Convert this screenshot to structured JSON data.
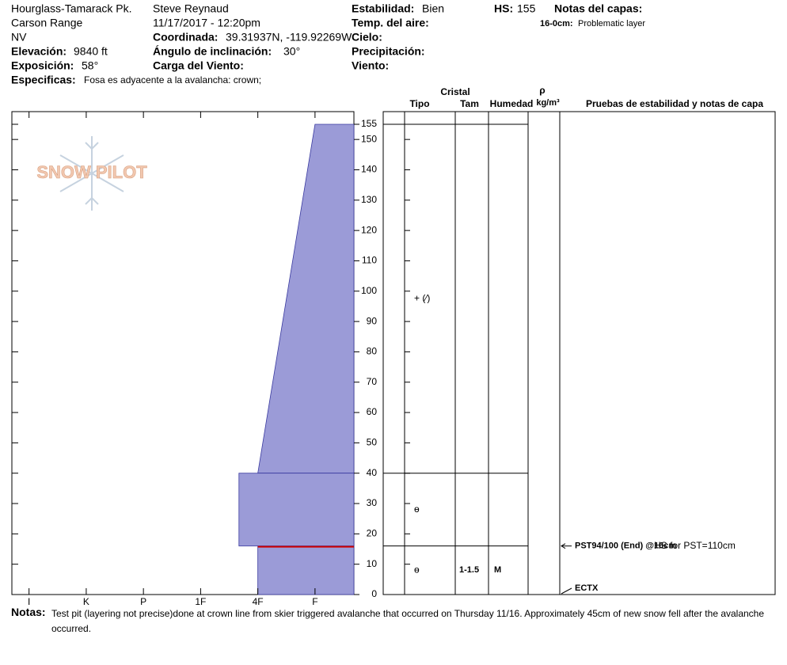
{
  "header": {
    "location": "Hourglass-Tamarack Pk.",
    "range": "Carson Range",
    "state": "NV",
    "elevation_label": "Elevación:",
    "elevation": "9840 ft",
    "aspect_label": "Exposición:",
    "aspect": "58°",
    "specifics_label": "Especificas:",
    "specifics": "Fosa es adyacente a la avalancha: crown;",
    "observer": "Steve Reynaud",
    "datetime": "11/17/2017 - 12:20pm",
    "coord_label": "Coordinada:",
    "coord": "39.31937N, -119.92269W",
    "slope_label": "Ángulo de inclinación:",
    "slope": "30°",
    "wind_load_label": "Carga del Viento:",
    "stability_label": "Estabilidad:",
    "stability": "Bien",
    "air_temp_label": "Temp. del aire:",
    "sky_label": "Cielo:",
    "precip_label": "Precipitación:",
    "wind_label": "Viento:",
    "hs_label": "HS:",
    "hs": "155",
    "layer_notes_label": "Notas del capas:",
    "layer_note_range": "16-0cm:",
    "layer_note": "Problematic layer"
  },
  "logo": "SNOW PILOT",
  "chart_data": {
    "type": "snow-profile",
    "hardness_axis": {
      "xlim": [
        6.3,
        0.32
      ],
      "xticks": [
        {
          "value": 6,
          "label": "I"
        },
        {
          "value": 5,
          "label": "K"
        },
        {
          "value": 4,
          "label": "P"
        },
        {
          "value": 3,
          "label": "1F"
        },
        {
          "value": 2,
          "label": "4F"
        },
        {
          "value": 1,
          "label": "F"
        }
      ]
    },
    "ylim": [
      0,
      155
    ],
    "yticks": [
      0,
      10,
      20,
      30,
      40,
      50,
      60,
      70,
      80,
      90,
      100,
      110,
      120,
      130,
      140,
      150,
      155
    ],
    "color": "#9b9bd7",
    "layers": [
      {
        "top": 155,
        "bottom": 40,
        "hardness_top": 1,
        "hardness_bottom": 2,
        "grain": "+ (⁄)"
      },
      {
        "top": 40,
        "bottom": 16,
        "hardness": 2.33,
        "grain": "ɵ"
      },
      {
        "top": 16,
        "bottom": 0,
        "hardness": 2,
        "grain": "ɵ",
        "size": "1-1.5",
        "moisture": "M"
      }
    ],
    "columns": {
      "crystal": "Cristal",
      "type": "Tipo",
      "size": "Tam",
      "moisture": "Humedad",
      "density_symbol": "ρ",
      "density_unit": "kg/m³",
      "tests": "Pruebas de estabilidad y notas de capa"
    },
    "tests": [
      {
        "depth": 16,
        "label": "PST94/100 (End) @16cm",
        "note": "HS for PST=110cm"
      },
      {
        "depth": 0,
        "label": "ECTX"
      }
    ]
  },
  "notes": {
    "label": "Notas:",
    "text": "Test pit (layering not precise)done at crown line from skier triggered avalanche that occurred on Thursday 11/16.  Approximately 45cm of new snow fell after the avalanche occurred."
  }
}
